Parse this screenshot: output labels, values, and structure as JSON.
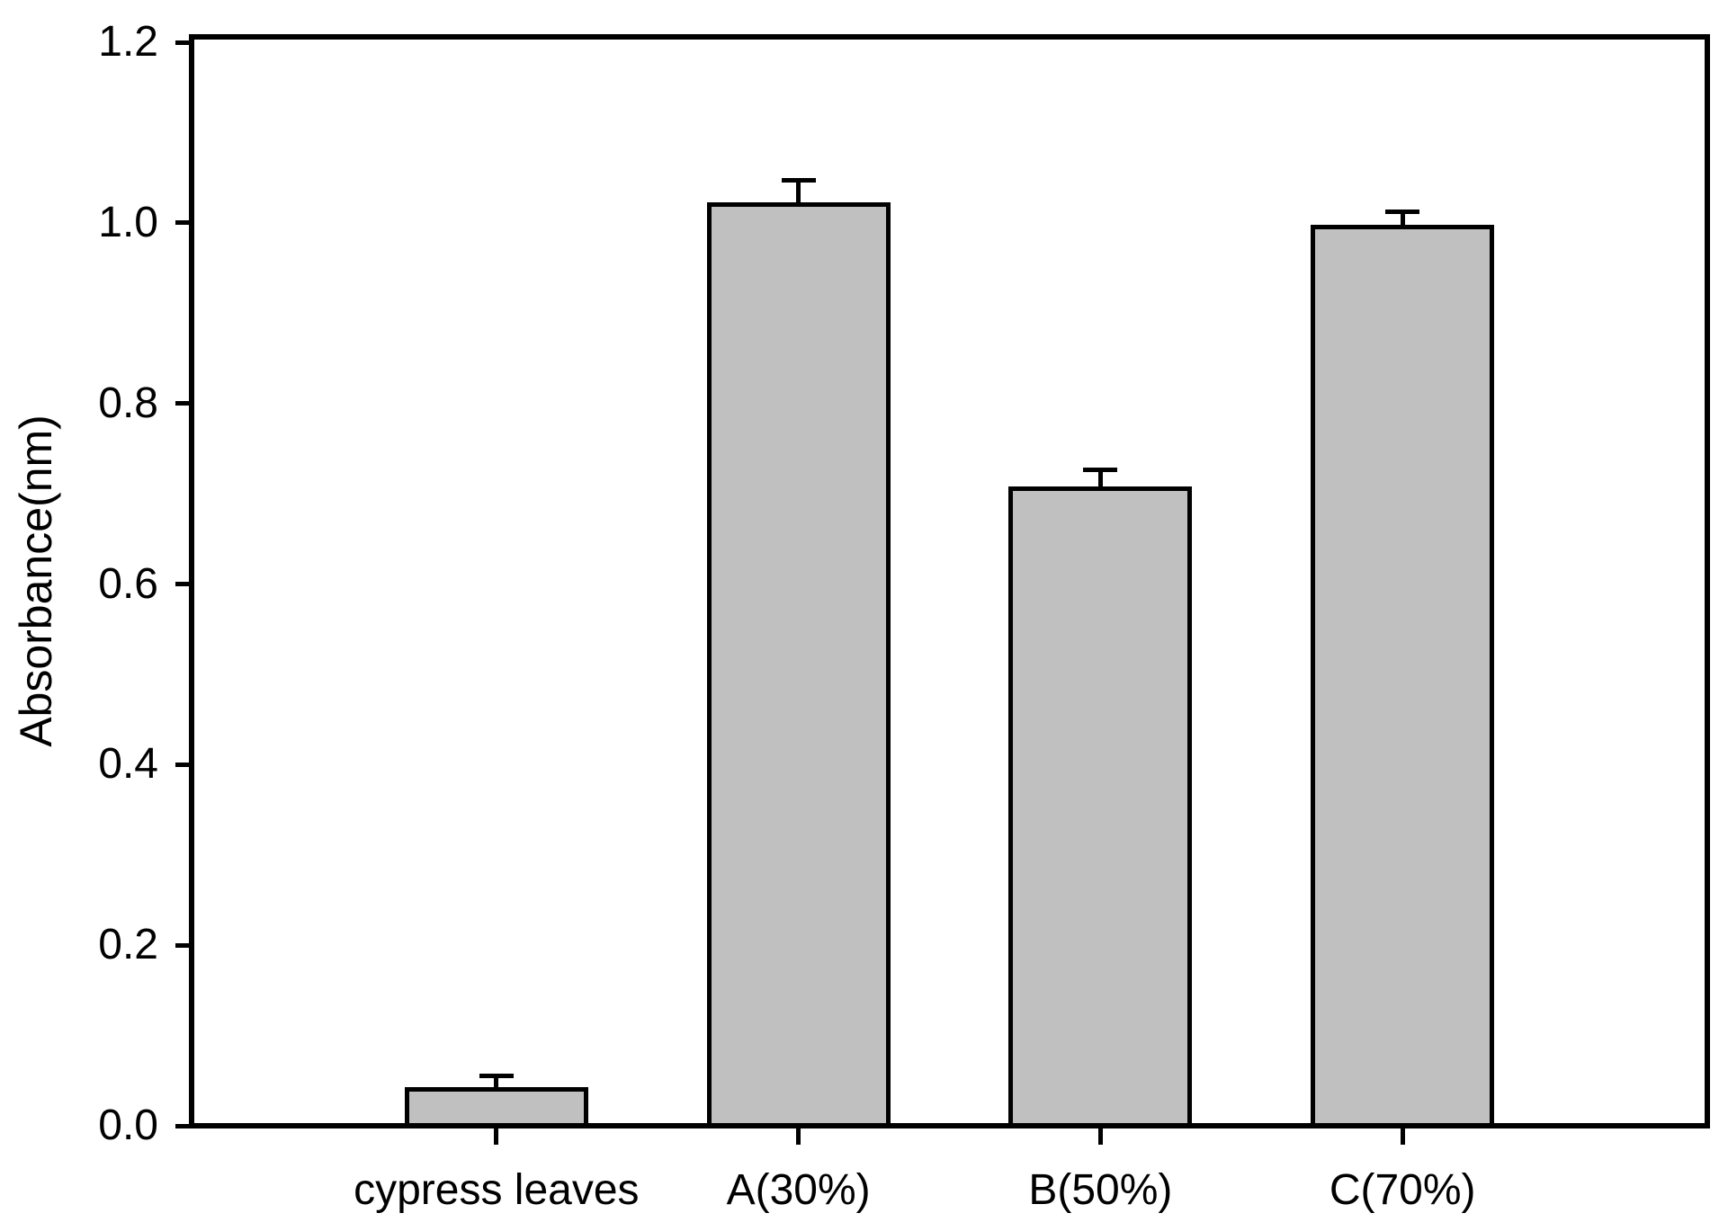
{
  "chart_data": {
    "type": "bar",
    "title": "",
    "xlabel": "",
    "ylabel": "Absorbance(nm)",
    "categories": [
      "cypress leaves",
      "A(30%)",
      "B(50%)",
      "C(70%)"
    ],
    "series": [
      {
        "name": "Absorbance",
        "values": [
          0.04,
          1.02,
          0.705,
          0.995
        ],
        "errors_plus": [
          0.012,
          0.024,
          0.018,
          0.014
        ]
      }
    ],
    "ylim": [
      0.0,
      1.2
    ],
    "yticks": [
      0.0,
      0.2,
      0.4,
      0.6,
      0.8,
      1.0,
      1.2
    ],
    "ytick_labels": [
      "0.0",
      "0.2",
      "0.4",
      "0.6",
      "0.8",
      "1.0",
      "1.2"
    ],
    "grid": false,
    "legend": null,
    "bar_fill_color": "#c0c0c0",
    "line_color": "#000000",
    "error_bar_style": "caps-up"
  }
}
